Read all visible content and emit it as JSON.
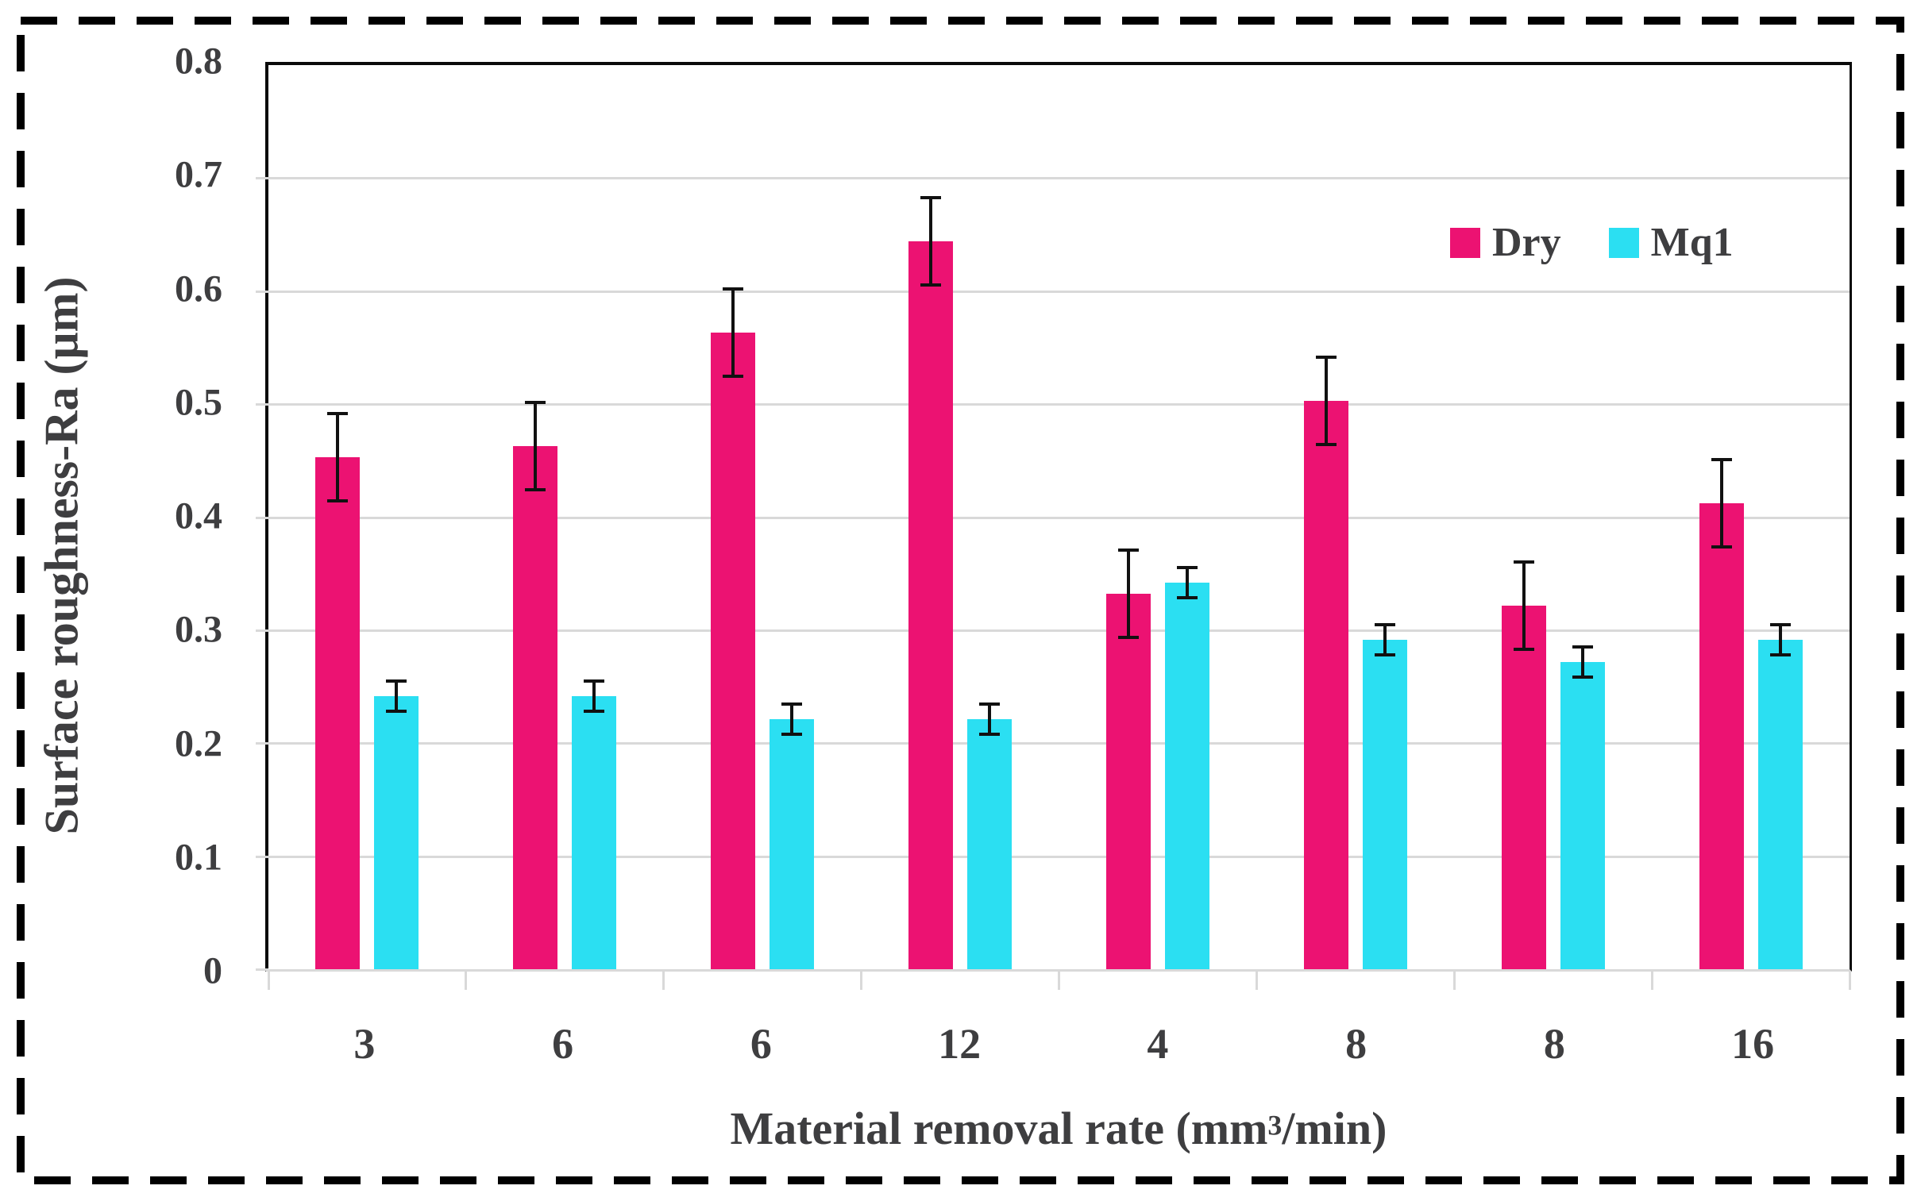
{
  "figure": {
    "background": "#ffffff",
    "border": {
      "color": "#000000",
      "style": "dashed"
    }
  },
  "axes": {
    "y_title": "Surface roughness-Ra (μm)",
    "x_title_parts": {
      "pre": "Material removal rate (mm",
      "sup": "3",
      "post": "/min)"
    },
    "y_ticks": [
      "0",
      "0.1",
      "0.2",
      "0.3",
      "0.4",
      "0.5",
      "0.6",
      "0.7",
      "0.8"
    ],
    "text_color": "#3e3e40",
    "gridline_color": "#d9d9d9",
    "frame_color": "#0a0a0a",
    "baseline_color": "#d9d9d9"
  },
  "chart_data": {
    "type": "bar",
    "title": "",
    "xlabel": "Material removal rate (mm³/min)",
    "ylabel": "Surface roughness-Ra (μm)",
    "categories": [
      "3",
      "6",
      "6",
      "12",
      "4",
      "8",
      "8",
      "16"
    ],
    "series": [
      {
        "name": "Dry",
        "color": "#ec1272",
        "values": [
          0.45,
          0.46,
          0.56,
          0.64,
          0.33,
          0.5,
          0.32,
          0.41
        ],
        "error_bars": [
          0.04,
          0.04,
          0.04,
          0.04,
          0.04,
          0.04,
          0.04,
          0.04
        ]
      },
      {
        "name": "Mq1",
        "color": "#2bdff2",
        "values": [
          0.24,
          0.24,
          0.22,
          0.22,
          0.34,
          0.29,
          0.27,
          0.29
        ],
        "error_bars": [
          0.015,
          0.015,
          0.015,
          0.015,
          0.015,
          0.015,
          0.015,
          0.015
        ]
      }
    ],
    "ylim": [
      0,
      0.8
    ],
    "ytick_step": 0.1,
    "grid": true,
    "error_bar_color": "#111111",
    "legend_position": "top-right-inside"
  }
}
